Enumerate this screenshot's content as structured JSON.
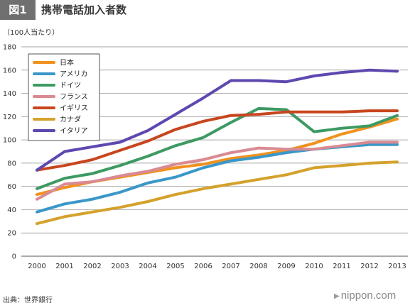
{
  "header": {
    "fig_label": "図1",
    "title": "携帯電話加入者数"
  },
  "unit_label": "（100人当たり）",
  "source_label": "出典：世界銀行",
  "brand": "nippon.com",
  "chart_data": {
    "type": "line",
    "title": "携帯電話加入者数",
    "xlabel": "",
    "ylabel": "（100人当たり）",
    "ylim": [
      0,
      180
    ],
    "yticks": [
      0,
      20,
      40,
      60,
      80,
      100,
      120,
      140,
      160,
      180
    ],
    "x": [
      2000,
      2001,
      2002,
      2003,
      2004,
      2005,
      2006,
      2007,
      2008,
      2009,
      2010,
      2011,
      2012,
      2013
    ],
    "grid": true,
    "legend_position": "top-left",
    "series": [
      {
        "name": "日本",
        "color": "#f0921e",
        "values": [
          53,
          59,
          64,
          68,
          72,
          76,
          79,
          84,
          87,
          91,
          97,
          105,
          111,
          118
        ]
      },
      {
        "name": "アメリカ",
        "color": "#3a97c9",
        "values": [
          38,
          45,
          49,
          55,
          63,
          68,
          76,
          82,
          85,
          89,
          92,
          94,
          96,
          96
        ]
      },
      {
        "name": "ドイツ",
        "color": "#3d9a62",
        "values": [
          58,
          67,
          71,
          78,
          86,
          95,
          102,
          115,
          127,
          126,
          107,
          110,
          112,
          121
        ]
      },
      {
        "name": "フランス",
        "color": "#d98a92",
        "values": [
          49,
          62,
          64,
          69,
          73,
          79,
          83,
          89,
          93,
          92,
          92,
          95,
          98,
          98
        ]
      },
      {
        "name": "イギリス",
        "color": "#c8461e",
        "values": [
          74,
          78,
          83,
          91,
          99,
          109,
          116,
          121,
          122,
          124,
          124,
          124,
          125,
          125
        ]
      },
      {
        "name": "カナダ",
        "color": "#d4a12c",
        "values": [
          28,
          34,
          38,
          42,
          47,
          53,
          58,
          62,
          66,
          70,
          76,
          78,
          80,
          81
        ]
      },
      {
        "name": "イタリア",
        "color": "#5e48b0",
        "values": [
          74,
          90,
          94,
          98,
          108,
          122,
          136,
          151,
          151,
          150,
          155,
          158,
          160,
          159
        ]
      }
    ]
  }
}
